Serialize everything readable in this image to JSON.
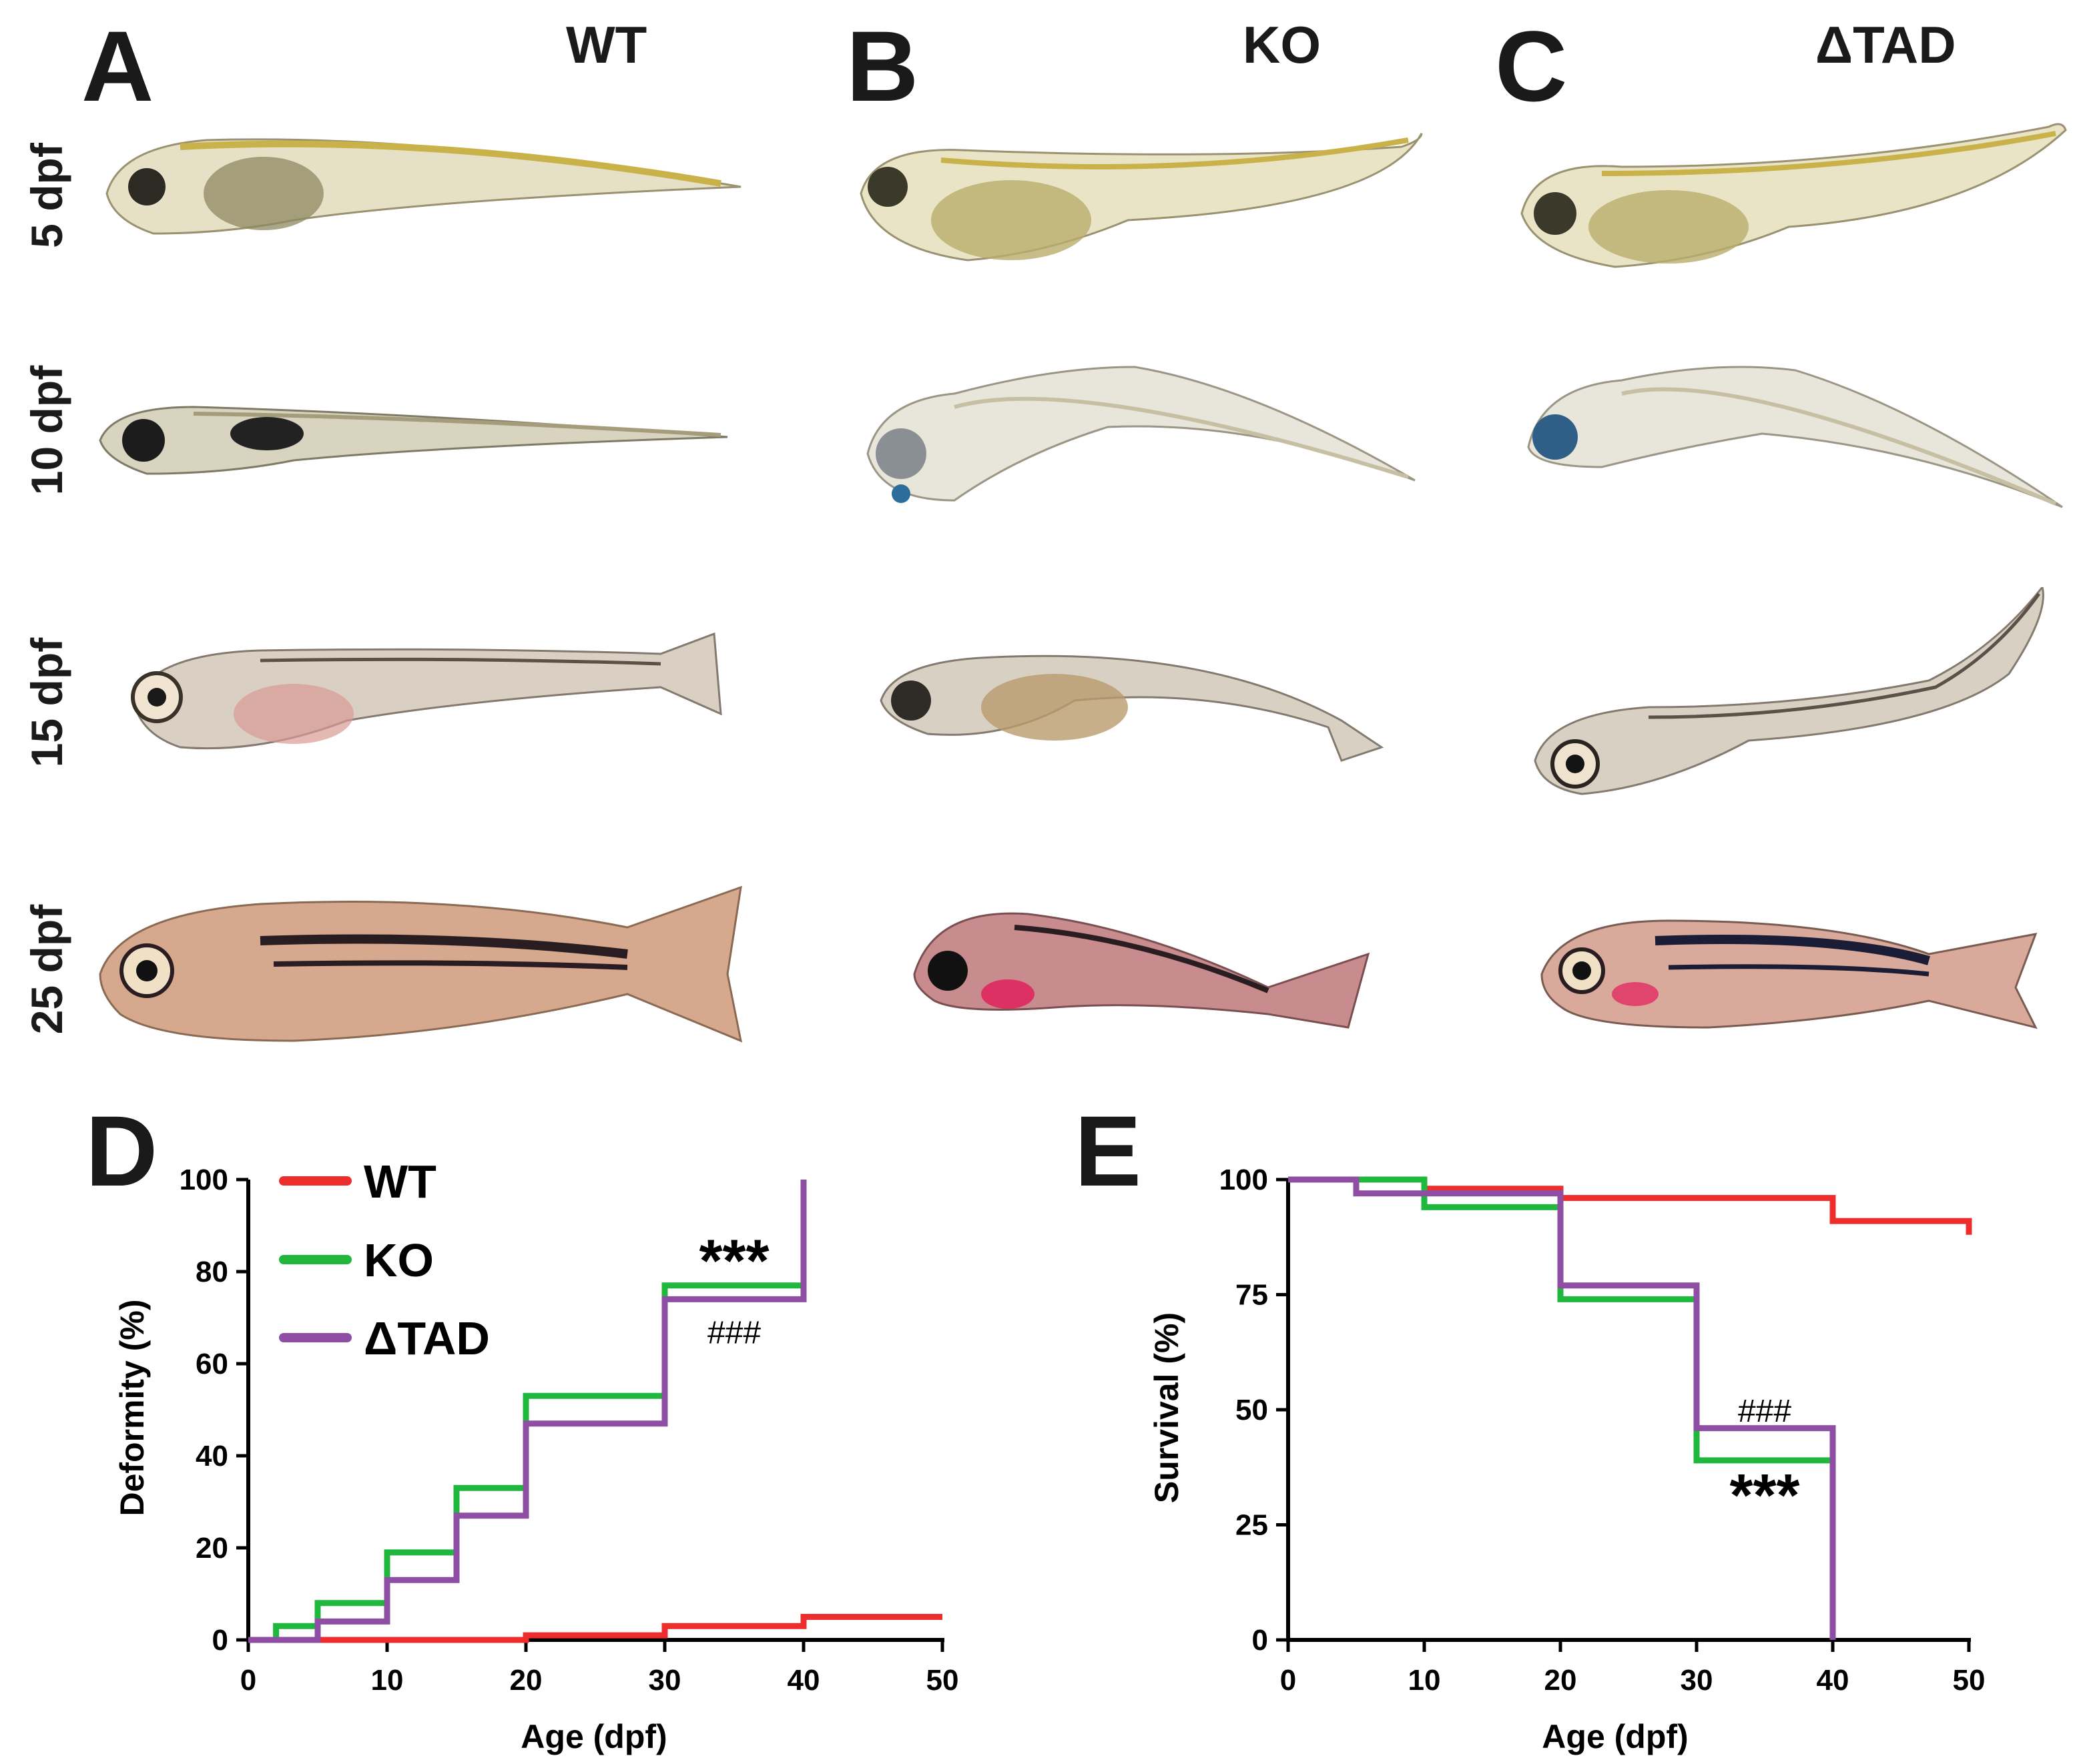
{
  "panels": {
    "A": {
      "letter": "A",
      "label": "WT"
    },
    "B": {
      "letter": "B",
      "label": "KO"
    },
    "C": {
      "letter": "C",
      "label": "ΔTAD"
    },
    "D": {
      "letter": "D"
    },
    "E": {
      "letter": "E"
    }
  },
  "rows": [
    "5 dpf",
    "10 dpf",
    "15 dpf",
    "25 dpf"
  ],
  "colors": {
    "WT": "#ee2d2d",
    "KO": "#1fb83c",
    "dTAD": "#8e4ea3",
    "axis": "#000000"
  },
  "chart_data": [
    {
      "panel": "D",
      "type": "line",
      "step": true,
      "title": "",
      "xlabel": "Age (dpf)",
      "ylabel": "Deformity (%)",
      "xlim": [
        0,
        50
      ],
      "ylim": [
        0,
        100
      ],
      "xticks": [
        0,
        10,
        20,
        30,
        40,
        50
      ],
      "yticks": [
        0,
        20,
        40,
        60,
        80,
        100
      ],
      "legend_position": "top-left",
      "series": [
        {
          "name": "WT",
          "color": "#ee2d2d",
          "x": [
            0,
            20,
            30,
            40,
            50
          ],
          "y": [
            0,
            1,
            3,
            5,
            5
          ]
        },
        {
          "name": "KO",
          "color": "#1fb83c",
          "x": [
            0,
            2,
            5,
            10,
            15,
            20,
            30,
            40
          ],
          "y": [
            0,
            3,
            8,
            19,
            33,
            53,
            77,
            77
          ]
        },
        {
          "name": "ΔTAD",
          "color": "#8e4ea3",
          "x": [
            0,
            5,
            10,
            15,
            20,
            30,
            40,
            40
          ],
          "y": [
            0,
            4,
            13,
            27,
            47,
            74,
            74,
            100
          ]
        }
      ],
      "annotations": [
        {
          "text": "***",
          "x": 35,
          "y": 83
        },
        {
          "text": "###",
          "x": 35,
          "y": 67
        }
      ]
    },
    {
      "panel": "E",
      "type": "line",
      "step": true,
      "title": "",
      "xlabel": "Age (dpf)",
      "ylabel": "Survival (%)",
      "xlim": [
        0,
        50
      ],
      "ylim": [
        0,
        100
      ],
      "xticks": [
        0,
        10,
        20,
        30,
        40,
        50
      ],
      "yticks": [
        0,
        25,
        50,
        75,
        100
      ],
      "series": [
        {
          "name": "WT",
          "color": "#ee2d2d",
          "x": [
            0,
            10,
            20,
            40,
            50
          ],
          "y": [
            100,
            98,
            96,
            91,
            88
          ]
        },
        {
          "name": "KO",
          "color": "#1fb83c",
          "x": [
            0,
            10,
            20,
            30,
            40
          ],
          "y": [
            100,
            94,
            74,
            39,
            0
          ]
        },
        {
          "name": "ΔTAD",
          "color": "#8e4ea3",
          "x": [
            0,
            5,
            20,
            30,
            40
          ],
          "y": [
            100,
            97,
            77,
            46,
            0
          ]
        }
      ],
      "annotations": [
        {
          "text": "###",
          "x": 35,
          "y": 50
        },
        {
          "text": "***",
          "x": 35,
          "y": 32
        }
      ]
    }
  ]
}
